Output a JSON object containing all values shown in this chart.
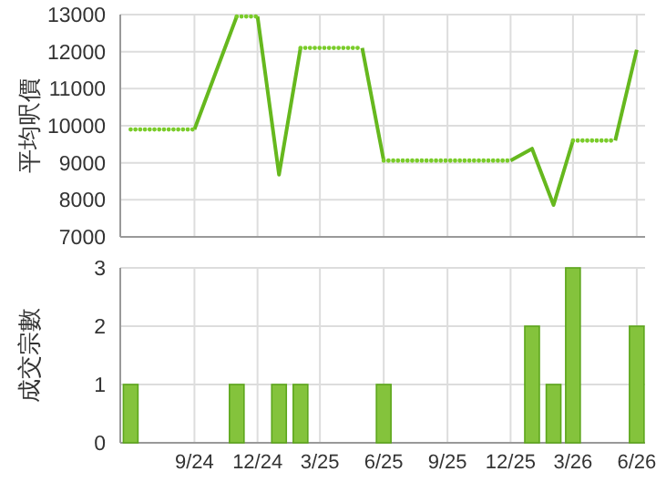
{
  "chart_data": [
    {
      "type": "line",
      "ylabel": "平均呎價",
      "xlim": [
        "2024-05-17",
        "2026-06-13"
      ],
      "ylim": [
        7000,
        13000
      ],
      "yticks": [
        7000,
        8000,
        9000,
        10000,
        11000,
        12000,
        13000
      ],
      "xticks": [
        {
          "value": "2024-09",
          "label": null
        },
        {
          "value": "2024-12",
          "label": null
        },
        {
          "value": "2025-03",
          "label": null
        },
        {
          "value": "2025-06",
          "label": null
        },
        {
          "value": "2025-09",
          "label": null
        },
        {
          "value": "2025-12",
          "label": null
        },
        {
          "value": "2026-03",
          "label": null
        },
        {
          "value": "2026-06",
          "label": null
        }
      ],
      "tick_labels": "y",
      "grid": true,
      "marker": "none",
      "series": [
        {
          "color": "#66b81e",
          "line_style": "solid",
          "x": [
            "2024-09",
            "2024-11",
            "2024-11-20",
            "2024-12",
            "2025-01",
            "2025-02",
            "2025-03",
            "2025-05",
            "2025-06",
            "2025-09",
            "2025-12",
            "2026-01",
            "2026-02",
            "2026-03",
            "2026-04",
            "2026-05",
            "2026-06"
          ],
          "values": [
            9900,
            12950,
            null,
            12950,
            8680,
            12100,
            null,
            12100,
            9060,
            null,
            9060,
            9380,
            7860,
            9600,
            null,
            9600,
            12050
          ]
        },
        {
          "color": "#7acc2a",
          "line_style": "dotted",
          "x": [
            "2024-06",
            "2024-09",
            "2024-10",
            "2024-11",
            "2024-12",
            "2025-01",
            "2025-02",
            "2025-05",
            "2025-05-20",
            "2025-06",
            "2025-12",
            "2026-01",
            "2026-03",
            "2026-05"
          ],
          "values": [
            9900,
            9900,
            null,
            12950,
            12950,
            null,
            12100,
            12100,
            null,
            9060,
            9060,
            null,
            9600,
            9600
          ]
        }
      ]
    },
    {
      "type": "bar",
      "ylabel": "成交宗數",
      "xlim": [
        "2024-05-17",
        "2026-06-13"
      ],
      "ylim": [
        0,
        3
      ],
      "yticks": [
        0,
        1,
        2,
        3
      ],
      "xticks": [
        {
          "value": "2024-09",
          "label": "9/24"
        },
        {
          "value": "2024-12",
          "label": "12/24"
        },
        {
          "value": "2025-03",
          "label": "3/25"
        },
        {
          "value": "2025-06",
          "label": "6/25"
        },
        {
          "value": "2025-09",
          "label": "9/25"
        },
        {
          "value": "2025-12",
          "label": "12/25"
        },
        {
          "value": "2026-03",
          "label": "3/26"
        },
        {
          "value": "2026-06",
          "label": "6/26"
        }
      ],
      "grid": true,
      "color": "#84c33c",
      "x": [
        "2024-06",
        "2024-11",
        "2025-01",
        "2025-02",
        "2025-06",
        "2026-01",
        "2026-02",
        "2026-03",
        "2026-06"
      ],
      "values": [
        1,
        1,
        1,
        1,
        1,
        2,
        1,
        3,
        2
      ]
    }
  ]
}
